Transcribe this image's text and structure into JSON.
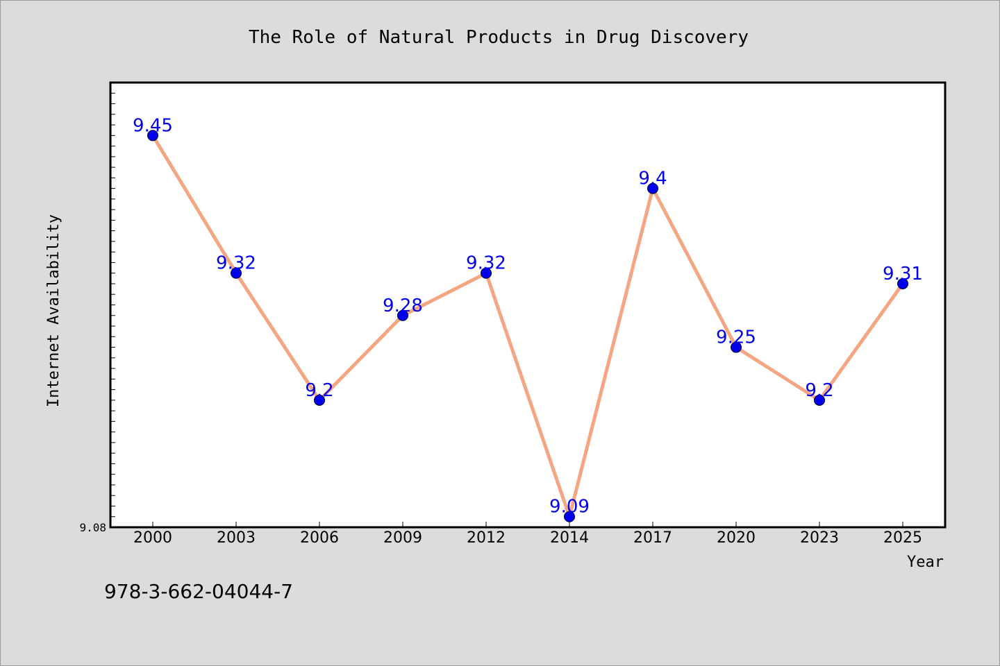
{
  "chart_data": {
    "type": "line",
    "title": "The Role of Natural Products in Drug Discovery",
    "xlabel": "Year",
    "ylabel": "Internet Availability",
    "categories": [
      "2000",
      "2003",
      "2006",
      "2009",
      "2012",
      "2014",
      "2017",
      "2020",
      "2023",
      "2025"
    ],
    "series": [
      {
        "values": [
          9.45,
          9.32,
          9.2,
          9.28,
          9.32,
          9.09,
          9.4,
          9.25,
          9.2,
          9.31
        ],
        "labels": [
          "9.45",
          "9.32",
          "9.2",
          "9.28",
          "9.32",
          "9.09",
          "9.4",
          "9.25",
          "9.2",
          "9.31"
        ]
      }
    ],
    "ylim": [
      9.08,
      9.5
    ],
    "ytick_labels": [
      "9.08"
    ],
    "grid": false,
    "colors": {
      "line": "#f4a582",
      "marker": "#0000ee",
      "label": "#0000ee",
      "background": "#dcdcdc",
      "plot_bg": "#ffffff"
    }
  },
  "footer": {
    "isbn": "978-3-662-04044-7"
  }
}
